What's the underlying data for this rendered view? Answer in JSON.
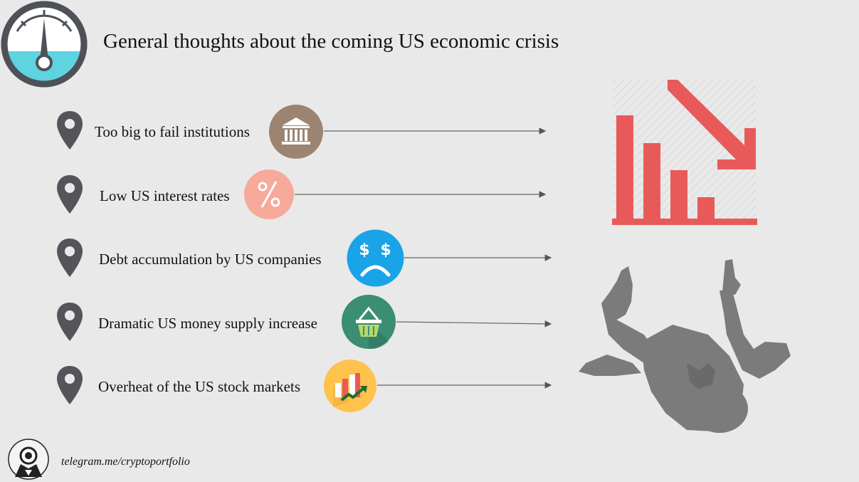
{
  "title": "General thoughts about the coming US economic crisis",
  "items": [
    {
      "label": "Too big to fail institutions",
      "icon": "bank-icon",
      "color": "#9c8472"
    },
    {
      "label": "Low US interest rates",
      "icon": "percent-icon",
      "color": "#f7a99a"
    },
    {
      "label": "Debt accumulation by US companies",
      "icon": "sad-dollar-icon",
      "color": "#19a4e8"
    },
    {
      "label": "Dramatic US money supply increase",
      "icon": "basket-icon",
      "color": "#3b8d73"
    },
    {
      "label": "Overheat of the US stock markets",
      "icon": "rising-chart-icon",
      "color": "#fec24d"
    }
  ],
  "footer": "telegram.me/cryptoportfolio",
  "colors": {
    "pin": "#55545a",
    "falling_chart": "#e85a5a",
    "silhouette": "#7b7b7b",
    "gauge_fill": "#5fd3df",
    "gauge_ring": "#4e5258"
  }
}
